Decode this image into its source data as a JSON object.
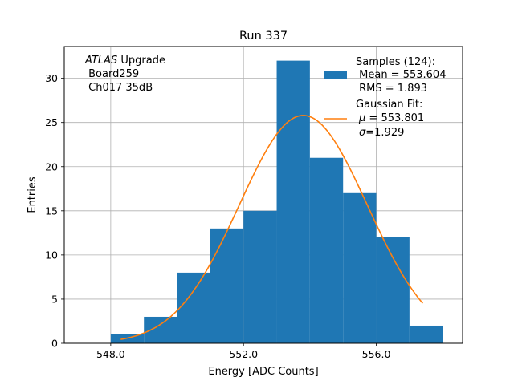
{
  "chart_data": {
    "type": "bar",
    "title": "Run 337",
    "xlabel": "Energy [ADC Counts]",
    "ylabel": "Entries",
    "xlim": [
      546.6,
      558.6
    ],
    "ylim": [
      0,
      33.6
    ],
    "x_ticks": [
      548.0,
      552.0,
      556.0
    ],
    "x_tick_labels": [
      "548.0",
      "552.0",
      "556.0"
    ],
    "y_ticks": [
      0,
      5,
      10,
      15,
      20,
      25,
      30
    ],
    "y_tick_labels": [
      "0",
      "5",
      "10",
      "15",
      "20",
      "25",
      "30"
    ],
    "grid": true,
    "histogram": {
      "bin_edges": [
        548,
        549,
        550,
        551,
        552,
        553,
        554,
        555,
        556,
        557,
        558
      ],
      "counts": [
        1,
        3,
        8,
        13,
        15,
        32,
        21,
        17,
        12,
        2
      ],
      "color": "#1f77b4"
    },
    "fit": {
      "type": "gaussian",
      "amplitude": 25.8,
      "mu": 553.801,
      "sigma": 1.929,
      "x_range": [
        548.3,
        557.4
      ],
      "color": "#ff7f0e"
    },
    "annotation": {
      "italic": "ATLAS",
      "rest": " Upgrade",
      "line2": " Board259",
      "line3": " Ch017 35dB"
    },
    "legend": {
      "placement": "top-right",
      "samples": {
        "line1": "Samples (124):",
        "line2": " Mean = 553.604",
        "line3": " RMS = 1.893"
      },
      "fit_entry": {
        "line1": "Gaussian Fit:",
        "line2_sym": "μ",
        "line2_rest": " = 553.801",
        "line3_sym": "σ",
        "line3_rest": "=1.929"
      }
    }
  }
}
